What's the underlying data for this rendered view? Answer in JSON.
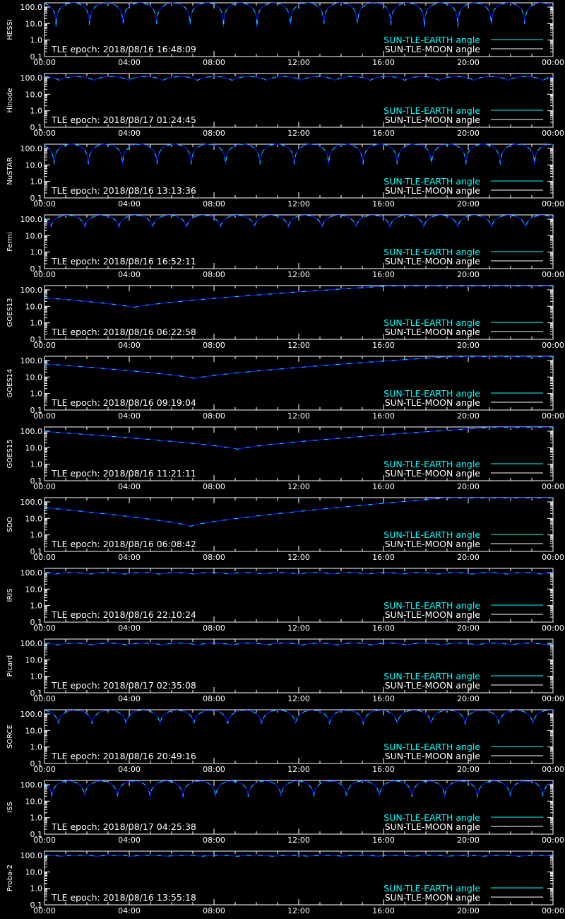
{
  "colors": {
    "background": "#000000",
    "axes": "#ffffff",
    "earth_angle": "#00ffff",
    "moon_angle": "#ffffff",
    "curve": "#1414ff"
  },
  "legend": {
    "earth_label": "SUN-TLE-EARTH angle",
    "moon_label": "SUN-TLE-MOON angle"
  },
  "chart_data": [
    {
      "type": "line",
      "satellite": "HESSI",
      "epoch_text": "TLE epoch: 2018/08/16 16:48:09",
      "x_ticks": [
        "00:00",
        "04:00",
        "08:00",
        "12:00",
        "16:00",
        "20:00",
        "00:00"
      ],
      "y_ticks": [
        "100.0",
        "10.0",
        "1.0",
        "0.1"
      ],
      "xlim": [
        0,
        24
      ],
      "ylim": [
        0.1,
        180
      ],
      "yscale": "log",
      "curve": {
        "kind": "orbit",
        "period_h": 1.58,
        "phase_h": 0.55,
        "min": 4,
        "max": 175
      }
    },
    {
      "type": "line",
      "satellite": "Hinode",
      "epoch_text": "TLE epoch: 2018/08/17 01:24:45",
      "x_ticks": [
        "00:00",
        "04:00",
        "08:00",
        "12:00",
        "16:00",
        "20:00",
        "00:00"
      ],
      "y_ticks": [
        "100.0",
        "10.0",
        "1.0",
        "0.1"
      ],
      "xlim": [
        0,
        24
      ],
      "ylim": [
        0.1,
        180
      ],
      "yscale": "log",
      "curve": {
        "kind": "orbit",
        "period_h": 1.63,
        "phase_h": 0.7,
        "min": 68,
        "max": 118
      }
    },
    {
      "type": "line",
      "satellite": "NuSTAR",
      "epoch_text": "TLE epoch: 2018/08/16 13:13:36",
      "x_ticks": [
        "00:00",
        "04:00",
        "08:00",
        "12:00",
        "16:00",
        "20:00",
        "00:00"
      ],
      "y_ticks": [
        "100.0",
        "10.0",
        "1.0",
        "0.1"
      ],
      "xlim": [
        0,
        24
      ],
      "ylim": [
        0.1,
        180
      ],
      "yscale": "log",
      "curve": {
        "kind": "orbit",
        "period_h": 1.62,
        "phase_h": 0.45,
        "min": 7,
        "max": 178
      }
    },
    {
      "type": "line",
      "satellite": "Fermi",
      "epoch_text": "TLE epoch: 2018/08/16 16:52:11",
      "x_ticks": [
        "00:00",
        "04:00",
        "08:00",
        "12:00",
        "16:00",
        "20:00",
        "00:00"
      ],
      "y_ticks": [
        "100.0",
        "10.0",
        "1.0",
        "0.1"
      ],
      "xlim": [
        0,
        24
      ],
      "ylim": [
        0.1,
        180
      ],
      "yscale": "log",
      "curve": {
        "kind": "orbit",
        "period_h": 1.6,
        "phase_h": 0.3,
        "min": 30,
        "max": 170
      }
    },
    {
      "type": "line",
      "satellite": "GOES13",
      "epoch_text": "TLE epoch: 2018/08/16 06:22:58",
      "x_ticks": [
        "00:00",
        "04:00",
        "08:00",
        "12:00",
        "16:00",
        "20:00",
        "00:00"
      ],
      "y_ticks": [
        "100.0",
        "10.0",
        "1.0",
        "0.1"
      ],
      "xlim": [
        0,
        24
      ],
      "ylim": [
        0.1,
        180
      ],
      "yscale": "log",
      "curve": {
        "kind": "geo",
        "dip_h": 4.2,
        "min": 8.5,
        "max": 170
      }
    },
    {
      "type": "line",
      "satellite": "GOES14",
      "epoch_text": "TLE epoch: 2018/08/16 09:19:04",
      "x_ticks": [
        "00:00",
        "04:00",
        "08:00",
        "12:00",
        "16:00",
        "20:00",
        "00:00"
      ],
      "y_ticks": [
        "100.0",
        "10.0",
        "1.0",
        "0.1"
      ],
      "xlim": [
        0,
        24
      ],
      "ylim": [
        0.1,
        180
      ],
      "yscale": "log",
      "curve": {
        "kind": "geo",
        "dip_h": 7.1,
        "min": 8.0,
        "max": 170
      }
    },
    {
      "type": "line",
      "satellite": "GOES15",
      "epoch_text": "TLE epoch: 2018/08/16 11:21:11",
      "x_ticks": [
        "00:00",
        "04:00",
        "08:00",
        "12:00",
        "16:00",
        "20:00",
        "00:00"
      ],
      "y_ticks": [
        "100.0",
        "10.0",
        "1.0",
        "0.1"
      ],
      "xlim": [
        0,
        24
      ],
      "ylim": [
        0.1,
        180
      ],
      "yscale": "log",
      "curve": {
        "kind": "geo",
        "dip_h": 9.1,
        "min": 8.0,
        "max": 170
      }
    },
    {
      "type": "line",
      "satellite": "SDO",
      "epoch_text": "TLE epoch: 2018/08/16 06:08:42",
      "x_ticks": [
        "00:00",
        "04:00",
        "08:00",
        "12:00",
        "16:00",
        "20:00",
        "00:00"
      ],
      "y_ticks": [
        "100.0",
        "10.0",
        "1.0",
        "0.1"
      ],
      "xlim": [
        0,
        24
      ],
      "ylim": [
        0.1,
        180
      ],
      "yscale": "log",
      "curve": {
        "kind": "geo",
        "dip_h": 6.9,
        "min": 3.3,
        "max": 172
      }
    },
    {
      "type": "line",
      "satellite": "IRIS",
      "epoch_text": "TLE epoch: 2018/08/16 22:10:24",
      "x_ticks": [
        "00:00",
        "04:00",
        "08:00",
        "12:00",
        "16:00",
        "20:00",
        "00:00"
      ],
      "y_ticks": [
        "100.0",
        "10.0",
        "1.0",
        "0.1"
      ],
      "xlim": [
        0,
        24
      ],
      "ylim": [
        0.1,
        180
      ],
      "yscale": "log",
      "curve": {
        "kind": "orbit",
        "period_h": 1.64,
        "phase_h": 0.5,
        "min": 80,
        "max": 100
      }
    },
    {
      "type": "line",
      "satellite": "Picard",
      "epoch_text": "TLE epoch: 2018/08/17 02:35:08",
      "x_ticks": [
        "00:00",
        "04:00",
        "08:00",
        "12:00",
        "16:00",
        "20:00",
        "00:00"
      ],
      "y_ticks": [
        "100.0",
        "10.0",
        "1.0",
        "0.1"
      ],
      "xlim": [
        0,
        24
      ],
      "ylim": [
        0.1,
        180
      ],
      "yscale": "log",
      "curve": {
        "kind": "orbit",
        "period_h": 1.65,
        "phase_h": 0.6,
        "min": 78,
        "max": 102
      }
    },
    {
      "type": "line",
      "satellite": "SORCE",
      "epoch_text": "TLE epoch: 2018/08/16 20:49:16",
      "x_ticks": [
        "00:00",
        "04:00",
        "08:00",
        "12:00",
        "16:00",
        "20:00",
        "00:00"
      ],
      "y_ticks": [
        "100.0",
        "10.0",
        "1.0",
        "0.1"
      ],
      "xlim": [
        0,
        24
      ],
      "ylim": [
        0.1,
        180
      ],
      "yscale": "log",
      "curve": {
        "kind": "orbit",
        "period_h": 1.6,
        "phase_h": 0.65,
        "min": 22,
        "max": 168
      }
    },
    {
      "type": "line",
      "satellite": "ISS",
      "epoch_text": "TLE epoch: 2018/08/17 04:25:38",
      "x_ticks": [
        "00:00",
        "04:00",
        "08:00",
        "12:00",
        "16:00",
        "20:00",
        "00:00"
      ],
      "y_ticks": [
        "100.0",
        "10.0",
        "1.0",
        "0.1"
      ],
      "xlim": [
        0,
        24
      ],
      "ylim": [
        0.1,
        180
      ],
      "yscale": "log",
      "curve": {
        "kind": "orbit",
        "period_h": 1.545,
        "phase_h": 0.35,
        "min": 16,
        "max": 165
      }
    },
    {
      "type": "line",
      "satellite": "Proba-2",
      "epoch_text": "TLE epoch: 2018/08/16 13:55:18",
      "x_ticks": [
        "00:00",
        "04:00",
        "08:00",
        "12:00",
        "16:00",
        "20:00",
        "00:00"
      ],
      "y_ticks": [
        "100.0",
        "10.0",
        "1.0",
        "0.1"
      ],
      "xlim": [
        0,
        24
      ],
      "ylim": [
        0.1,
        180
      ],
      "yscale": "log",
      "curve": {
        "kind": "orbit",
        "period_h": 1.66,
        "phase_h": 0.8,
        "min": 88,
        "max": 100
      }
    }
  ]
}
